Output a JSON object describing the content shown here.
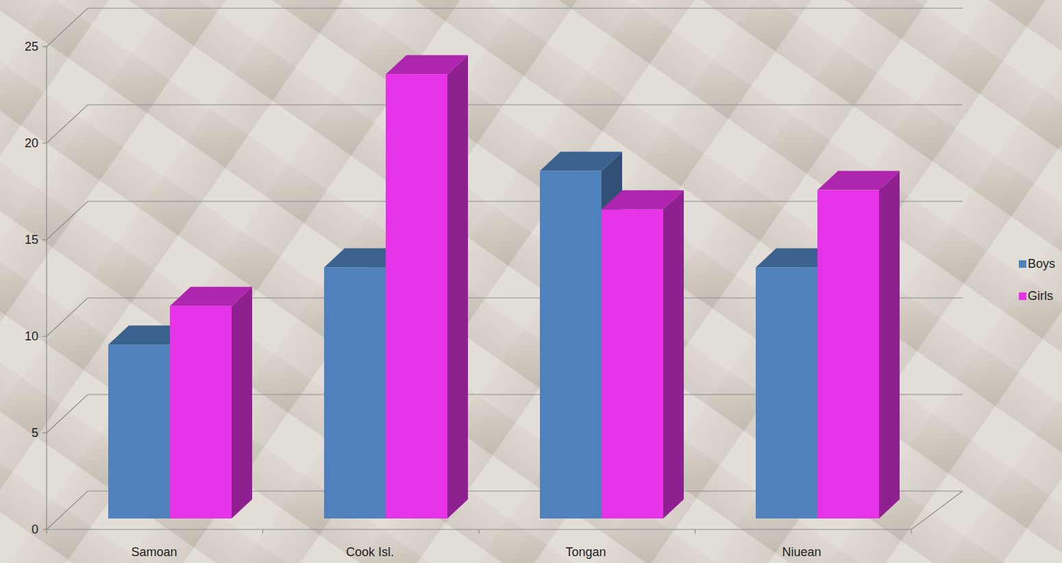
{
  "chart_data": {
    "type": "bar",
    "categories": [
      "Samoan",
      "Cook Isl.",
      "Tongan",
      "Niuean"
    ],
    "series": [
      {
        "name": "Boys",
        "color": "#4f81bd",
        "values": [
          9,
          13,
          18,
          13
        ]
      },
      {
        "name": "Girls",
        "color": "#e733e7",
        "values": [
          11,
          23,
          16,
          17
        ]
      }
    ],
    "ylim": [
      0,
      25
    ],
    "yticks": [
      0,
      5,
      10,
      15,
      20,
      25
    ],
    "grid": true,
    "legend": "right"
  }
}
